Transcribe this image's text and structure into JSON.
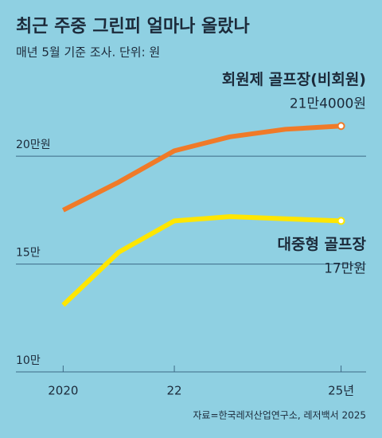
{
  "chart_data": {
    "type": "line",
    "title": "최근 주중 그린피 얼마나 올랐나",
    "subtitle": "매년 5월 기준 조사. 단위: 원",
    "source": "자료=한국레저산업연구소, 레저백서 2025",
    "x": [
      2020,
      2021,
      2022,
      2023,
      2024,
      2025
    ],
    "xlim": [
      2019.15,
      2025.45
    ],
    "xticks": [
      2020,
      {
        "value": 2022,
        "label": "22"
      },
      {
        "value": 2025,
        "label": "25년"
      }
    ],
    "ylim": [
      10,
      22
    ],
    "yticks": [
      {
        "value": 10,
        "label": "10만"
      },
      {
        "value": 15,
        "label": "15만"
      },
      {
        "value": 20,
        "label": "20만원"
      }
    ],
    "grid": true,
    "series": [
      {
        "name": "회원제 골프장(비회원)",
        "color": "#f07a28",
        "values": [
          17.5,
          18.8,
          20.25,
          20.9,
          21.25,
          21.4
        ],
        "value_labels": [
          null,
          null,
          null,
          null,
          null,
          "21만4000원"
        ]
      },
      {
        "name": "대중형 골프장",
        "color": "#ffe600",
        "values": [
          13.1,
          15.55,
          17.0,
          17.2,
          17.1,
          17.0
        ],
        "value_labels": [
          null,
          null,
          null,
          null,
          null,
          "17만원"
        ]
      }
    ]
  }
}
